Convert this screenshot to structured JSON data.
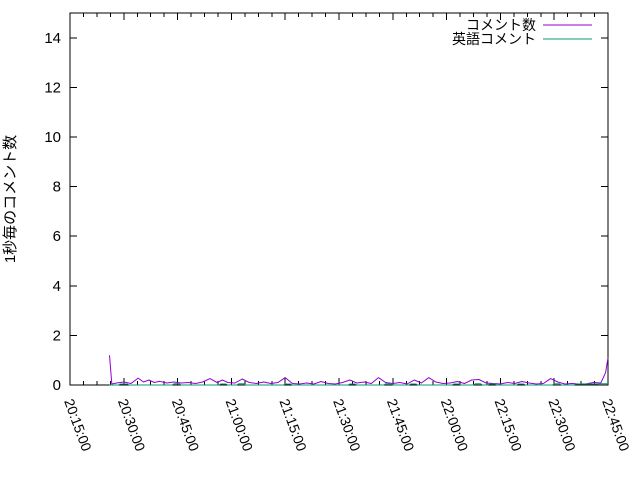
{
  "page": {
    "background": "#ffffff"
  },
  "colors": {
    "axis": "#000000",
    "series1": "#9400D3",
    "series2": "#009E73"
  },
  "chart_data": {
    "type": "line",
    "title": "",
    "xlabel": "",
    "ylabel": "1秒毎のコメント数",
    "ylim": [
      0,
      15
    ],
    "xlim_time": [
      "20:15:00",
      "22:45:00"
    ],
    "y_ticks": [
      0,
      2,
      4,
      6,
      8,
      10,
      12,
      14
    ],
    "x_ticks": [
      "20:15:00",
      "20:30:00",
      "20:45:00",
      "21:00:00",
      "21:15:00",
      "21:30:00",
      "21:45:00",
      "22:00:00",
      "22:15:00",
      "22:30:00",
      "22:45:00"
    ],
    "x_minor_divisions": 4,
    "x_tick_rotation": 70,
    "grid": false,
    "legend_position": "top-right-inside",
    "series": [
      {
        "name": "コメント数",
        "color": "#9400D3",
        "points": [
          [
            "20:26:00",
            1.2
          ],
          [
            "20:26:40",
            0.04
          ],
          [
            "20:28:00",
            0.08
          ],
          [
            "20:30:00",
            0.12
          ],
          [
            "20:32:00",
            0.06
          ],
          [
            "20:34:00",
            0.28
          ],
          [
            "20:35:30",
            0.12
          ],
          [
            "20:37:00",
            0.2
          ],
          [
            "20:38:30",
            0.1
          ],
          [
            "20:40:00",
            0.15
          ],
          [
            "20:42:00",
            0.08
          ],
          [
            "20:44:00",
            0.12
          ],
          [
            "20:46:00",
            0.08
          ],
          [
            "20:48:00",
            0.1
          ],
          [
            "20:50:00",
            0.06
          ],
          [
            "20:52:00",
            0.12
          ],
          [
            "20:54:00",
            0.26
          ],
          [
            "20:56:00",
            0.1
          ],
          [
            "20:57:30",
            0.2
          ],
          [
            "20:59:00",
            0.1
          ],
          [
            "21:01:00",
            0.08
          ],
          [
            "21:03:00",
            0.24
          ],
          [
            "21:05:00",
            0.1
          ],
          [
            "21:07:00",
            0.06
          ],
          [
            "21:09:00",
            0.12
          ],
          [
            "21:11:00",
            0.06
          ],
          [
            "21:13:00",
            0.1
          ],
          [
            "21:15:00",
            0.3
          ],
          [
            "21:17:00",
            0.06
          ],
          [
            "21:19:00",
            0.04
          ],
          [
            "21:21:00",
            0.08
          ],
          [
            "21:23:00",
            0.04
          ],
          [
            "21:25:00",
            0.14
          ],
          [
            "21:27:00",
            0.06
          ],
          [
            "21:29:00",
            0.04
          ],
          [
            "21:31:00",
            0.1
          ],
          [
            "21:33:00",
            0.2
          ],
          [
            "21:35:00",
            0.08
          ],
          [
            "21:37:00",
            0.12
          ],
          [
            "21:39:00",
            0.06
          ],
          [
            "21:41:00",
            0.3
          ],
          [
            "21:43:00",
            0.1
          ],
          [
            "21:45:00",
            0.06
          ],
          [
            "21:47:00",
            0.1
          ],
          [
            "21:49:00",
            0.04
          ],
          [
            "21:51:00",
            0.2
          ],
          [
            "21:53:00",
            0.08
          ],
          [
            "21:55:00",
            0.3
          ],
          [
            "21:57:00",
            0.12
          ],
          [
            "21:59:00",
            0.06
          ],
          [
            "22:01:00",
            0.08
          ],
          [
            "22:03:00",
            0.14
          ],
          [
            "22:05:00",
            0.06
          ],
          [
            "22:07:00",
            0.2
          ],
          [
            "22:09:00",
            0.22
          ],
          [
            "22:11:00",
            0.08
          ],
          [
            "22:13:00",
            0.06
          ],
          [
            "22:15:00",
            0.04
          ],
          [
            "22:17:00",
            0.1
          ],
          [
            "22:19:00",
            0.06
          ],
          [
            "22:21:00",
            0.14
          ],
          [
            "22:23:00",
            0.08
          ],
          [
            "22:25:00",
            0.04
          ],
          [
            "22:27:00",
            0.06
          ],
          [
            "22:29:00",
            0.26
          ],
          [
            "22:31:00",
            0.12
          ],
          [
            "22:33:00",
            0.04
          ],
          [
            "22:35:00",
            0.06
          ],
          [
            "22:37:00",
            0.04
          ],
          [
            "22:39:00",
            0.05
          ],
          [
            "22:41:00",
            0.1
          ],
          [
            "22:43:00",
            0.08
          ],
          [
            "22:44:20",
            0.5
          ],
          [
            "22:45:00",
            1.1
          ]
        ]
      },
      {
        "name": "英語コメント",
        "color": "#009E73",
        "points": [
          [
            "20:26:00",
            0
          ],
          [
            "20:28:30",
            0
          ],
          [
            "20:29:00",
            0.04
          ],
          [
            "20:31:00",
            0.04
          ],
          [
            "20:31:30",
            0
          ],
          [
            "20:43:30",
            0
          ],
          [
            "20:44:00",
            0.05
          ],
          [
            "20:45:30",
            0.05
          ],
          [
            "20:46:00",
            0
          ],
          [
            "20:56:30",
            0
          ],
          [
            "20:57:00",
            0.04
          ],
          [
            "20:58:30",
            0.04
          ],
          [
            "20:59:00",
            0
          ],
          [
            "21:01:30",
            0
          ],
          [
            "21:02:00",
            0.05
          ],
          [
            "21:03:30",
            0.05
          ],
          [
            "21:04:00",
            0
          ],
          [
            "21:14:30",
            0
          ],
          [
            "21:15:00",
            0.04
          ],
          [
            "21:16:30",
            0.04
          ],
          [
            "21:17:00",
            0
          ],
          [
            "21:32:30",
            0
          ],
          [
            "21:33:00",
            0.04
          ],
          [
            "21:34:30",
            0.04
          ],
          [
            "21:35:00",
            0
          ],
          [
            "21:42:30",
            0
          ],
          [
            "21:43:00",
            0.05
          ],
          [
            "21:44:30",
            0.05
          ],
          [
            "21:45:00",
            0
          ],
          [
            "21:49:30",
            0
          ],
          [
            "21:50:00",
            0.04
          ],
          [
            "21:51:30",
            0.04
          ],
          [
            "21:52:00",
            0
          ],
          [
            "22:01:30",
            0
          ],
          [
            "22:02:00",
            0.04
          ],
          [
            "22:03:30",
            0.04
          ],
          [
            "22:04:00",
            0
          ],
          [
            "22:07:30",
            0
          ],
          [
            "22:08:00",
            0.05
          ],
          [
            "22:09:30",
            0.05
          ],
          [
            "22:10:00",
            0
          ],
          [
            "22:11:30",
            0
          ],
          [
            "22:12:00",
            0.04
          ],
          [
            "22:13:30",
            0.04
          ],
          [
            "22:14:00",
            0
          ],
          [
            "22:19:30",
            0
          ],
          [
            "22:20:00",
            0.04
          ],
          [
            "22:21:30",
            0.04
          ],
          [
            "22:22:00",
            0
          ],
          [
            "22:29:30",
            0
          ],
          [
            "22:30:00",
            0.05
          ],
          [
            "22:31:30",
            0.05
          ],
          [
            "22:32:00",
            0
          ],
          [
            "22:35:30",
            0
          ],
          [
            "22:36:00",
            0.04
          ],
          [
            "22:42:00",
            0.04
          ],
          [
            "22:42:30",
            0.05
          ],
          [
            "22:45:00",
            0.05
          ]
        ]
      }
    ]
  }
}
